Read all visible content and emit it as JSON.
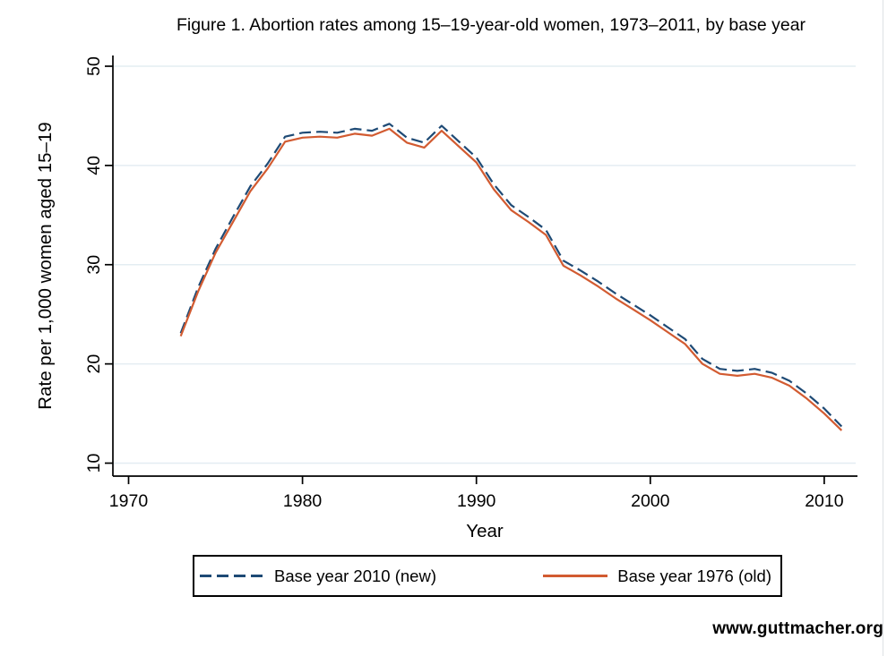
{
  "title": "Figure 1. Abortion rates among 15–19-year-old women, 1973–2011, by base year",
  "watermark": "www.guttmacher.org",
  "colors": {
    "grid": "#e4edf2",
    "axis": "#000000",
    "new_series": "#1e4a75",
    "old_series": "#d25b31",
    "background": "#ffffff"
  },
  "chart_data": {
    "type": "line",
    "title": "Figure 1. Abortion rates among 15–19-year-old women, 1973–2011, by base year",
    "xlabel": "Year",
    "ylabel": "Rate per 1,000 women aged 15–19",
    "xlim": [
      1969.1,
      2011.9
    ],
    "ylim": [
      8.7,
      51
    ],
    "xticks": [
      1970,
      1980,
      1990,
      2000,
      2010
    ],
    "yticks": [
      10,
      20,
      30,
      40,
      50
    ],
    "grid": "horizontal-only",
    "legend_position": "bottom",
    "x": [
      1973,
      1974,
      1975,
      1976,
      1977,
      1978,
      1979,
      1980,
      1981,
      1982,
      1983,
      1984,
      1985,
      1986,
      1987,
      1988,
      1989,
      1990,
      1991,
      1992,
      1993,
      1994,
      1995,
      1996,
      1997,
      1998,
      1999,
      2000,
      2001,
      2002,
      2003,
      2004,
      2005,
      2006,
      2007,
      2008,
      2009,
      2010,
      2011
    ],
    "series": [
      {
        "name": "Base year 2010 (new)",
        "color": "#1e4a75",
        "dash": "dashed",
        "values": [
          23.1,
          27.7,
          31.6,
          34.8,
          37.9,
          40.2,
          42.9,
          43.3,
          43.4,
          43.3,
          43.7,
          43.5,
          44.2,
          42.8,
          42.3,
          44.0,
          42.4,
          40.8,
          38.1,
          36.0,
          34.8,
          33.5,
          30.4,
          29.4,
          28.3,
          27.1,
          26.0,
          24.9,
          23.7,
          22.5,
          20.5,
          19.5,
          19.3,
          19.5,
          19.1,
          18.3,
          17.0,
          15.5,
          13.7
        ]
      },
      {
        "name": "Base year 1976 (old)",
        "color": "#d25b31",
        "dash": "solid",
        "values": [
          22.8,
          27.3,
          31.2,
          34.3,
          37.4,
          39.7,
          42.4,
          42.8,
          42.9,
          42.8,
          43.2,
          43.0,
          43.7,
          42.3,
          41.8,
          43.5,
          41.9,
          40.3,
          37.6,
          35.5,
          34.3,
          33.0,
          29.9,
          28.9,
          27.8,
          26.6,
          25.5,
          24.4,
          23.2,
          22.0,
          20.0,
          19.0,
          18.8,
          19.0,
          18.6,
          17.8,
          16.5,
          15.0,
          13.3
        ]
      }
    ]
  }
}
